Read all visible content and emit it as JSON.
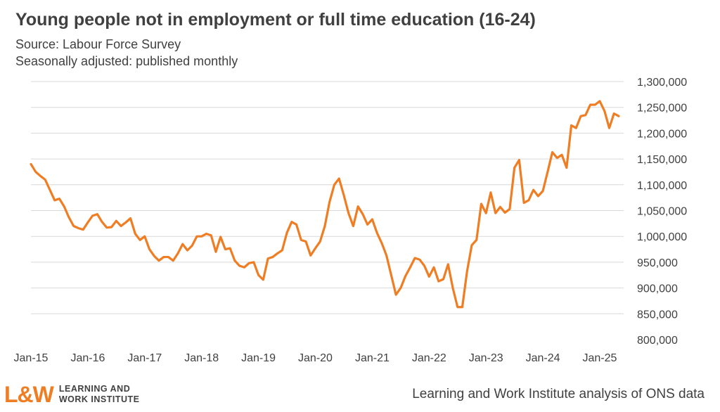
{
  "header": {
    "title": "Young people not in employment or full time education (16-24)",
    "source": "Source: Labour Force Survey",
    "note": "Seasonally adjusted: published monthly"
  },
  "footer": {
    "logo_mark": "L&W",
    "logo_line1": "LEARNING AND",
    "logo_line2": "WORK INSTITUTE",
    "credit": "Learning and Work Institute analysis of ONS data"
  },
  "colors": {
    "line": "#ef7d23",
    "grid": "#d9d9d9",
    "text": "#404040"
  },
  "chart_data": {
    "type": "line",
    "title": "Young people not in employment or full time education (16-24)",
    "xlabel": "",
    "ylabel": "",
    "ylim": [
      800000,
      1300000
    ],
    "yticks": [
      800000,
      850000,
      900000,
      950000,
      1000000,
      1050000,
      1100000,
      1150000,
      1200000,
      1250000,
      1300000
    ],
    "ytick_labels": [
      "800,000",
      "850,000",
      "900,000",
      "950,000",
      "1,000,000",
      "1,050,000",
      "1,100,000",
      "1,150,000",
      "1,200,000",
      "1,250,000",
      "1,300,000"
    ],
    "xtick_labels": [
      "Jan-15",
      "Jan-16",
      "Jan-17",
      "Jan-18",
      "Jan-19",
      "Jan-20",
      "Jan-21",
      "Jan-22",
      "Jan-23",
      "Jan-24",
      "Jan-25"
    ],
    "y_axis_side": "right",
    "grid": "horizontal",
    "legend": "none",
    "start": "Jan-15",
    "frequency": "monthly",
    "series": [
      {
        "values": [
          1140000,
          1125000,
          1117000,
          1110000,
          1090000,
          1070000,
          1073000,
          1058000,
          1037000,
          1020000,
          1016000,
          1013000,
          1027000,
          1040000,
          1043000,
          1028000,
          1017000,
          1018000,
          1030000,
          1020000,
          1027000,
          1035000,
          1005000,
          993000,
          1000000,
          975000,
          962000,
          953000,
          960000,
          960000,
          953000,
          967000,
          985000,
          973000,
          982000,
          1000000,
          1000000,
          1005000,
          1002000,
          970000,
          999000,
          975000,
          977000,
          953000,
          943000,
          940000,
          948000,
          950000,
          925000,
          916000,
          957000,
          960000,
          967000,
          973000,
          1007000,
          1028000,
          1023000,
          993000,
          990000,
          963000,
          977000,
          990000,
          1020000,
          1067000,
          1100000,
          1112000,
          1080000,
          1045000,
          1020000,
          1058000,
          1043000,
          1023000,
          1033000,
          1007000,
          987000,
          963000,
          925000,
          887000,
          900000,
          923000,
          940000,
          958000,
          955000,
          943000,
          922000,
          940000,
          913000,
          917000,
          946000,
          900000,
          863000,
          863000,
          932000,
          983000,
          993000,
          1063000,
          1045000,
          1085000,
          1045000,
          1057000,
          1046000,
          1053000,
          1133000,
          1148000,
          1065000,
          1070000,
          1090000,
          1078000,
          1088000,
          1125000,
          1163000,
          1152000,
          1158000,
          1133000,
          1215000,
          1210000,
          1233000,
          1235000,
          1255000,
          1255000,
          1262000,
          1243000,
          1210000,
          1238000,
          1233000
        ]
      }
    ]
  }
}
